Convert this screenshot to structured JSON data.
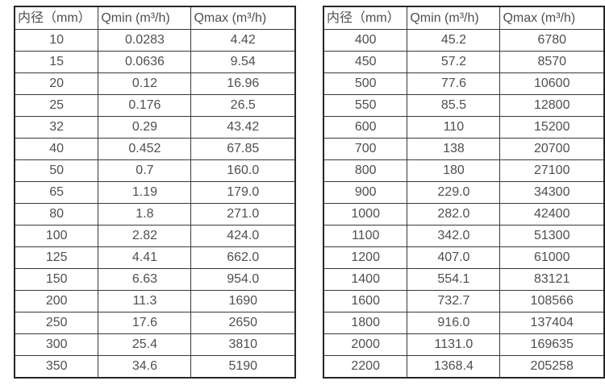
{
  "page": {
    "background_color": "#ffffff",
    "text_color": "#4f4f4f",
    "border_color": "#262626"
  },
  "tables": [
    {
      "name": "small-diameter-flow-table",
      "headers": [
        "内径（mm）",
        "Qmin (m³/h)",
        "Qmax (m³/h)"
      ],
      "rows": [
        [
          "10",
          "0.0283",
          "4.42"
        ],
        [
          "15",
          "0.0636",
          "9.54"
        ],
        [
          "20",
          "0.12",
          "16.96"
        ],
        [
          "25",
          "0.176",
          "26.5"
        ],
        [
          "32",
          "0.29",
          "43.42"
        ],
        [
          "40",
          "0.452",
          "67.85"
        ],
        [
          "50",
          "0.7",
          "160.0"
        ],
        [
          "65",
          "1.19",
          "179.0"
        ],
        [
          "80",
          "1.8",
          "271.0"
        ],
        [
          "100",
          "2.82",
          "424.0"
        ],
        [
          "125",
          "4.41",
          "662.0"
        ],
        [
          "150",
          "6.63",
          "954.0"
        ],
        [
          "200",
          "11.3",
          "1690"
        ],
        [
          "250",
          "17.6",
          "2650"
        ],
        [
          "300",
          "25.4",
          "3810"
        ],
        [
          "350",
          "34.6",
          "5190"
        ]
      ]
    },
    {
      "name": "large-diameter-flow-table",
      "headers": [
        "内径（mm）",
        "Qmin (m³/h)",
        "Qmax (m³/h)"
      ],
      "rows": [
        [
          "400",
          "45.2",
          "6780"
        ],
        [
          "450",
          "57.2",
          "8570"
        ],
        [
          "500",
          "77.6",
          "10600"
        ],
        [
          "550",
          "85.5",
          "12800"
        ],
        [
          "600",
          "110",
          "15200"
        ],
        [
          "700",
          "138",
          "20700"
        ],
        [
          "800",
          "180",
          "27100"
        ],
        [
          "900",
          "229.0",
          "34300"
        ],
        [
          "1000",
          "282.0",
          "42400"
        ],
        [
          "1100",
          "342.0",
          "51300"
        ],
        [
          "1200",
          "407.0",
          "61000"
        ],
        [
          "1400",
          "554.1",
          "83121"
        ],
        [
          "1600",
          "732.7",
          "108566"
        ],
        [
          "1800",
          "916.0",
          "137404"
        ],
        [
          "2000",
          "1131.0",
          "169635"
        ],
        [
          "2200",
          "1368.4",
          "205258"
        ]
      ]
    }
  ]
}
